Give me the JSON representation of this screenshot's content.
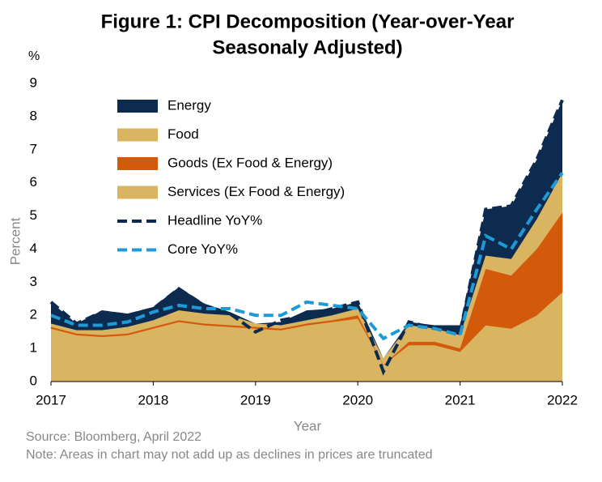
{
  "chart_data": {
    "type": "stacked_area",
    "title": [
      "Figure 1: CPI Decomposition (Year-over-Year",
      "Seasonaly Adjusted)"
    ],
    "y_unit": "%",
    "ylabel": "Percent",
    "xlabel": "Year",
    "source": "Source: Bloomberg, April 2022",
    "note": "Note: Areas in chart may not add up as declines in prices are truncated",
    "x": [
      2017,
      2017.25,
      2017.5,
      2017.75,
      2018,
      2018.25,
      2018.5,
      2018.75,
      2019,
      2019.25,
      2019.5,
      2019.75,
      2020,
      2020.25,
      2020.5,
      2020.75,
      2021,
      2021.25,
      2021.5,
      2021.75,
      2022
    ],
    "series": [
      {
        "name": "Services (Ex Food & Energy)",
        "color": "#d9b562",
        "values": [
          1.6,
          1.4,
          1.35,
          1.4,
          1.6,
          1.8,
          1.7,
          1.65,
          1.6,
          1.55,
          1.7,
          1.8,
          1.9,
          0.5,
          1.1,
          1.1,
          0.9,
          1.7,
          1.6,
          2.0,
          2.7
        ]
      },
      {
        "name": "Goods (Ex Food & Energy)",
        "color": "#d35a0a",
        "values": [
          0.05,
          0.05,
          0.05,
          0.05,
          0.05,
          0.05,
          0.05,
          0.05,
          0.05,
          0.05,
          0.05,
          0.05,
          0.1,
          0,
          0.1,
          0.1,
          0.1,
          1.7,
          1.6,
          2.0,
          2.4
        ]
      },
      {
        "name": "Food",
        "color": "#d9b562",
        "values": [
          0.1,
          0.1,
          0.15,
          0.2,
          0.2,
          0.3,
          0.3,
          0.3,
          0.1,
          0.1,
          0.1,
          0.15,
          0.2,
          0.2,
          0.5,
          0.4,
          0.4,
          0.4,
          0.5,
          0.9,
          1.2
        ]
      },
      {
        "name": "Energy",
        "color": "#0d2b4e",
        "values": [
          0.65,
          0.2,
          0.6,
          0.4,
          0.4,
          0.7,
          0.3,
          0.1,
          0,
          0.1,
          0.3,
          0.2,
          0.2,
          0,
          0.1,
          0.1,
          0.3,
          1.4,
          1.6,
          1.8,
          2.2
        ]
      }
    ],
    "lines": [
      {
        "name": "Headline YoY%",
        "color": "#0d2b4e",
        "values": [
          2.4,
          1.75,
          2.1,
          2.0,
          2.2,
          2.8,
          2.3,
          2.05,
          1.5,
          1.85,
          2.0,
          2.2,
          2.4,
          0.3,
          1.8,
          1.6,
          1.5,
          5.2,
          5.3,
          6.7,
          8.5
        ]
      },
      {
        "name": "Core YoY%",
        "color": "#1e9ad6",
        "values": [
          2.0,
          1.7,
          1.7,
          1.8,
          2.1,
          2.3,
          2.2,
          2.2,
          2.0,
          2.0,
          2.4,
          2.3,
          2.2,
          1.3,
          1.7,
          1.6,
          1.4,
          4.4,
          4.0,
          5.2,
          6.3
        ]
      }
    ],
    "xlim": [
      2017,
      2022
    ],
    "xticks": [
      2017,
      2018,
      2019,
      2020,
      2021,
      2022
    ],
    "ylim": [
      0,
      9
    ],
    "yticks": [
      0,
      1,
      2,
      3,
      4,
      5,
      6,
      7,
      8,
      9
    ],
    "grid": false,
    "legend": "upper left"
  }
}
